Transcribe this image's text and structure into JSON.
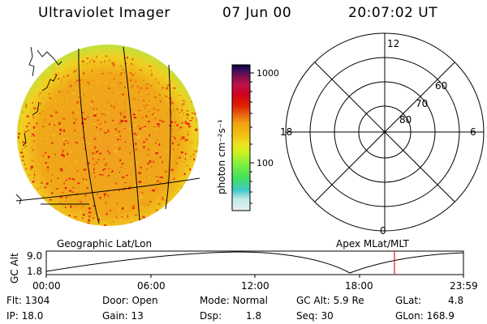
{
  "header": {
    "title": "Ultraviolet Imager",
    "date": "07 Jun 00",
    "time": "20:07:02 UT"
  },
  "colorbar": {
    "unit_label": "photon cm⁻²s⁻¹",
    "tick_labels": [
      "1000",
      "100"
    ],
    "stops": [
      "#e8f0f0",
      "#c0e8e8",
      "#40c8c8",
      "#40e060",
      "#80f040",
      "#d0f020",
      "#f0e020",
      "#f0c010",
      "#f0a010",
      "#e86010",
      "#e02000",
      "#d00020",
      "#c0104a",
      "#80104a",
      "#401060",
      "#000030"
    ]
  },
  "polar_plot": {
    "mlt_labels": {
      "top": "12",
      "left": "18",
      "right": "6",
      "bottom": "0"
    },
    "lat_labels": [
      "60",
      "70",
      "80"
    ]
  },
  "image_caption_left": "Geographic Lat/Lon",
  "image_caption_right": "Apex MLat/MLT",
  "altitude_plot": {
    "ylabel": "GC Alt",
    "y_ticks": [
      "9.0",
      "1.8"
    ],
    "x_ticks": [
      "00:00",
      "06:00",
      "12:00",
      "18:00",
      "23:59"
    ],
    "marker_time": "20:07"
  },
  "info": {
    "flt": "Flt: 1304",
    "ip": "IP: 18.0",
    "door": "Door: Open",
    "gain": "Gain: 13",
    "mode": "Mode: Normal",
    "dsp_label": "Dsp:",
    "dsp_value": "1.8",
    "gcalt": "GC Alt: 5.9 Re",
    "seq": "Seq: 30",
    "glat_label": "GLat:",
    "glat_value": "4.8",
    "glon": "GLon: 168.9"
  },
  "colors": {
    "disk_base": "#f0a020",
    "disk_hot": "#e82010",
    "disk_edge": "#d0e030",
    "marker": "#d02020"
  }
}
